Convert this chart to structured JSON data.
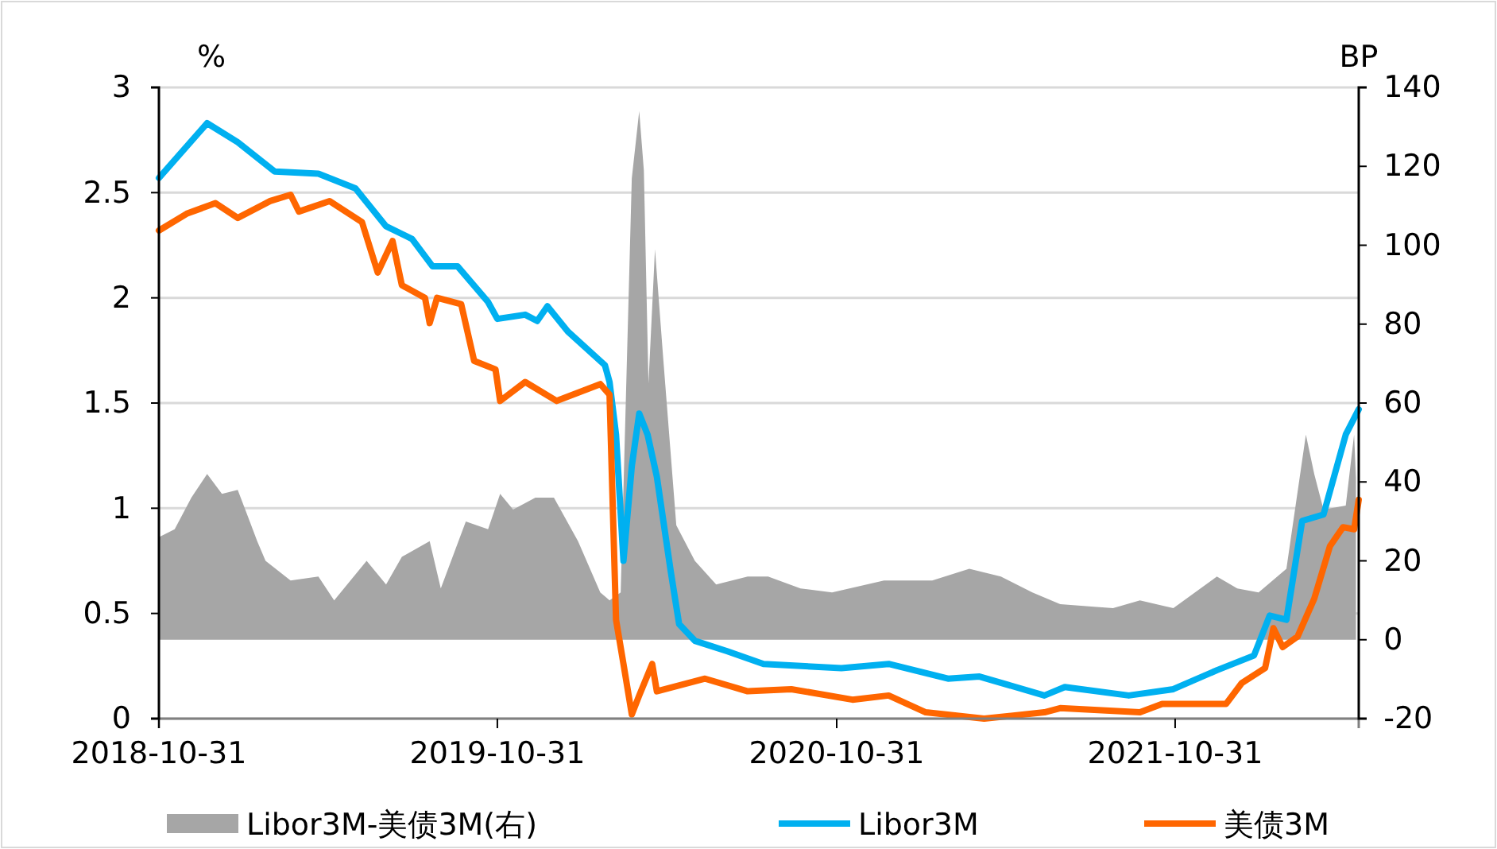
{
  "chart_data": {
    "type": "line",
    "ylabel": "%",
    "y2label": "BP",
    "xlim": [
      "2018-10-31",
      "2022-05-17"
    ],
    "xticks": [
      "2018-10-31",
      "2019-10-31",
      "2020-10-31",
      "2021-10-31"
    ],
    "ylim": [
      0,
      3
    ],
    "yticks": [
      0,
      0.5,
      1,
      1.5,
      2,
      2.5,
      3
    ],
    "y2lim": [
      -20,
      140
    ],
    "y2ticks": [
      -20,
      0,
      20,
      40,
      60,
      80,
      100,
      120,
      140
    ],
    "grid": "y",
    "legend": "bottom",
    "series": [
      {
        "name": "Libor3M-美债3M(右)",
        "type": "area",
        "axis": "y2",
        "color": "#a6a6a6",
        "x": [
          "2018-10-31",
          "2018-11-17",
          "2018-12-05",
          "2018-12-22",
          "2019-01-07",
          "2019-01-24",
          "2019-02-06",
          "2019-02-14",
          "2019-02-23",
          "2019-03-22",
          "2019-04-21",
          "2019-05-08",
          "2019-06-12",
          "2019-07-03",
          "2019-07-20",
          "2019-08-19",
          "2019-08-31",
          "2019-09-27",
          "2019-10-21",
          "2019-11-03",
          "2019-11-17",
          "2019-12-11",
          "2019-12-31",
          "2020-01-26",
          "2020-02-19",
          "2020-02-29",
          "2020-03-12",
          "2020-03-24",
          "2020-04-01",
          "2020-04-06",
          "2020-04-11",
          "2020-04-18",
          "2020-04-27",
          "2020-05-11",
          "2020-05-31",
          "2020-06-23",
          "2020-07-27",
          "2020-08-18",
          "2020-09-22",
          "2020-10-26",
          "2020-12-21",
          "2021-02-11",
          "2021-03-23",
          "2021-04-26",
          "2021-05-30",
          "2021-06-29",
          "2021-08-25",
          "2021-09-23",
          "2021-10-29",
          "2021-12-15",
          "2022-01-06",
          "2022-01-29",
          "2022-02-28",
          "2022-03-21",
          "2022-03-30",
          "2022-04-09",
          "2022-05-03",
          "2022-05-12",
          "2022-05-14"
        ],
        "values": [
          26,
          28,
          36,
          42,
          37,
          38,
          30,
          25,
          20,
          15,
          16,
          10,
          20,
          14,
          21,
          25,
          13,
          30,
          28,
          37,
          33,
          36,
          36,
          25,
          12,
          10,
          12,
          117,
          134,
          119,
          65,
          99,
          71,
          29,
          20,
          14,
          16,
          16,
          13,
          12,
          15,
          15,
          18,
          16,
          12,
          9,
          8,
          10,
          8,
          16,
          13,
          12,
          18,
          52,
          42,
          33,
          34,
          52,
          41
        ]
      },
      {
        "name": "Libor3M",
        "color": "#00b0f0",
        "x": [
          "2018-10-31",
          "2018-12-22",
          "2019-01-24",
          "2019-03-05",
          "2019-04-21",
          "2019-05-31",
          "2019-07-03",
          "2019-07-31",
          "2019-08-22",
          "2019-09-18",
          "2019-10-21",
          "2019-10-31",
          "2019-11-30",
          "2019-12-13",
          "2019-12-24",
          "2020-01-15",
          "2020-02-24",
          "2020-02-29",
          "2020-03-07",
          "2020-03-15",
          "2020-03-24",
          "2020-04-01",
          "2020-04-10",
          "2020-04-20",
          "2020-05-05",
          "2020-05-14",
          "2020-05-31",
          "2020-07-05",
          "2020-08-13",
          "2020-11-05",
          "2020-12-26",
          "2021-02-28",
          "2021-04-03",
          "2021-06-12",
          "2021-07-04",
          "2021-09-11",
          "2021-10-29",
          "2021-12-15",
          "2022-01-24",
          "2022-02-10",
          "2022-02-28",
          "2022-03-17",
          "2022-04-09",
          "2022-05-03",
          "2022-05-17"
        ],
        "values": [
          2.57,
          2.83,
          2.74,
          2.6,
          2.59,
          2.52,
          2.34,
          2.28,
          2.15,
          2.15,
          1.98,
          1.9,
          1.92,
          1.89,
          1.96,
          1.84,
          1.68,
          1.6,
          1.35,
          0.75,
          1.2,
          1.45,
          1.35,
          1.15,
          0.7,
          0.45,
          0.37,
          0.32,
          0.26,
          0.24,
          0.26,
          0.19,
          0.2,
          0.11,
          0.15,
          0.11,
          0.14,
          0.23,
          0.3,
          0.49,
          0.47,
          0.94,
          0.97,
          1.35,
          1.47
        ]
      },
      {
        "name": "美债3M",
        "color": "#ff6600",
        "x": [
          "2018-10-31",
          "2018-11-30",
          "2018-12-31",
          "2019-01-24",
          "2019-02-28",
          "2019-03-22",
          "2019-03-31",
          "2019-05-03",
          "2019-06-07",
          "2019-06-24",
          "2019-07-10",
          "2019-07-20",
          "2019-08-14",
          "2019-08-19",
          "2019-08-27",
          "2019-09-22",
          "2019-10-06",
          "2019-10-29",
          "2019-11-03",
          "2019-11-30",
          "2020-01-03",
          "2020-02-19",
          "2020-02-29",
          "2020-03-07",
          "2020-03-15",
          "2020-03-24",
          "2020-04-01",
          "2020-04-15",
          "2020-04-20",
          "2020-06-11",
          "2020-07-27",
          "2020-09-12",
          "2020-11-17",
          "2020-12-26",
          "2021-02-04",
          "2021-04-08",
          "2021-06-12",
          "2021-06-29",
          "2021-09-23",
          "2021-10-17",
          "2021-12-25",
          "2022-01-11",
          "2022-02-05",
          "2022-02-14",
          "2022-02-24",
          "2022-03-12",
          "2022-03-30",
          "2022-04-16",
          "2022-04-30",
          "2022-05-12",
          "2022-05-17"
        ],
        "values": [
          2.32,
          2.4,
          2.45,
          2.38,
          2.46,
          2.49,
          2.41,
          2.46,
          2.36,
          2.12,
          2.27,
          2.06,
          2.0,
          1.88,
          2.0,
          1.97,
          1.7,
          1.66,
          1.51,
          1.6,
          1.51,
          1.59,
          1.54,
          0.47,
          0.26,
          0.02,
          0.11,
          0.26,
          0.13,
          0.19,
          0.13,
          0.14,
          0.09,
          0.11,
          0.03,
          0.0,
          0.03,
          0.05,
          0.03,
          0.07,
          0.07,
          0.17,
          0.24,
          0.43,
          0.34,
          0.39,
          0.57,
          0.82,
          0.91,
          0.9,
          1.04
        ]
      }
    ]
  }
}
